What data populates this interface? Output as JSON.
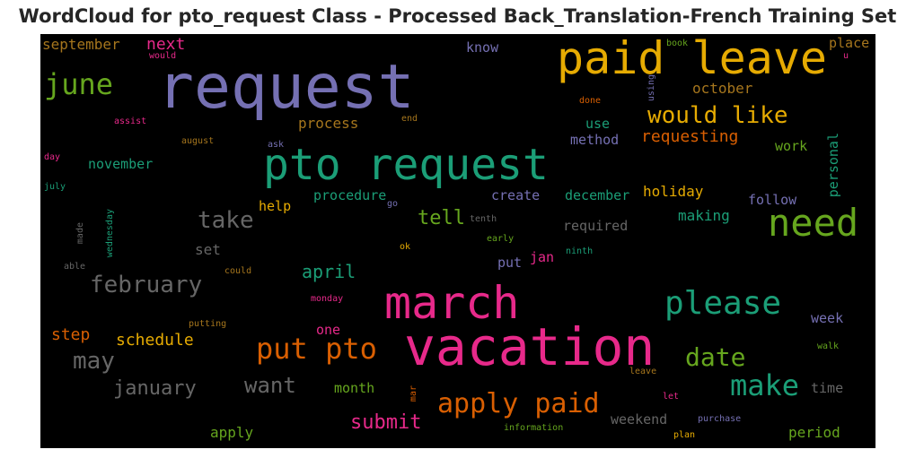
{
  "chart_data": {
    "type": "wordcloud",
    "title": "WordCloud for pto_request Class - Processed Back_Translation-French Training Set",
    "background": "#000000",
    "colormap": [
      "#1b9e77",
      "#d95f02",
      "#7570b3",
      "#e7298a",
      "#66a61e",
      "#e6ab02",
      "#a6761d",
      "#666666"
    ],
    "words": [
      {
        "text": "request",
        "color": "#7570b3"
      },
      {
        "text": "paid leave",
        "color": "#e6ab02"
      },
      {
        "text": "pto request",
        "color": "#1b9e77"
      },
      {
        "text": "vacation",
        "color": "#e7298a"
      },
      {
        "text": "march",
        "color": "#e7298a"
      },
      {
        "text": "need",
        "color": "#66a61e"
      },
      {
        "text": "please",
        "color": "#1b9e77"
      },
      {
        "text": "put pto",
        "color": "#d95f02"
      },
      {
        "text": "apply paid",
        "color": "#d95f02"
      },
      {
        "text": "make",
        "color": "#1b9e77"
      },
      {
        "text": "june",
        "color": "#66a61e"
      },
      {
        "text": "would like",
        "color": "#e6ab02"
      },
      {
        "text": "february",
        "color": "#666666"
      },
      {
        "text": "take",
        "color": "#666666"
      },
      {
        "text": "date",
        "color": "#66a61e"
      },
      {
        "text": "may",
        "color": "#666666"
      },
      {
        "text": "want",
        "color": "#666666"
      },
      {
        "text": "tell",
        "color": "#66a61e"
      },
      {
        "text": "january",
        "color": "#666666"
      },
      {
        "text": "submit",
        "color": "#e7298a"
      },
      {
        "text": "requesting",
        "color": "#d95f02"
      },
      {
        "text": "schedule",
        "color": "#e6ab02"
      },
      {
        "text": "october",
        "color": "#a6761d"
      },
      {
        "text": "april",
        "color": "#1b9e77"
      },
      {
        "text": "next",
        "color": "#e7298a"
      },
      {
        "text": "september",
        "color": "#a6761d"
      },
      {
        "text": "process",
        "color": "#a6761d"
      },
      {
        "text": "personal",
        "color": "#1b9e77"
      },
      {
        "text": "holiday",
        "color": "#e6ab02"
      },
      {
        "text": "making",
        "color": "#1b9e77"
      },
      {
        "text": "step",
        "color": "#d95f02"
      },
      {
        "text": "method",
        "color": "#7570b3"
      },
      {
        "text": "use",
        "color": "#1b9e77"
      },
      {
        "text": "work",
        "color": "#66a61e"
      },
      {
        "text": "november",
        "color": "#1b9e77"
      },
      {
        "text": "procedure",
        "color": "#1b9e77"
      },
      {
        "text": "create",
        "color": "#7570b3"
      },
      {
        "text": "december",
        "color": "#1b9e77"
      },
      {
        "text": "follow",
        "color": "#7570b3"
      },
      {
        "text": "required",
        "color": "#666666"
      },
      {
        "text": "set",
        "color": "#666666"
      },
      {
        "text": "help",
        "color": "#e6ab02"
      },
      {
        "text": "put",
        "color": "#7570b3"
      },
      {
        "text": "jan",
        "color": "#e7298a"
      },
      {
        "text": "know",
        "color": "#7570b3"
      },
      {
        "text": "place",
        "color": "#a6761d"
      },
      {
        "text": "week",
        "color": "#7570b3"
      },
      {
        "text": "time",
        "color": "#666666"
      },
      {
        "text": "month",
        "color": "#66a61e"
      },
      {
        "text": "one",
        "color": "#e7298a"
      },
      {
        "text": "weekend",
        "color": "#666666"
      },
      {
        "text": "apply",
        "color": "#66a61e"
      },
      {
        "text": "period",
        "color": "#66a61e"
      },
      {
        "text": "book",
        "color": "#66a61e"
      },
      {
        "text": "using",
        "color": "#7570b3"
      },
      {
        "text": "u",
        "color": "#e7298a"
      },
      {
        "text": "would",
        "color": "#e7298a"
      },
      {
        "text": "done",
        "color": "#d95f02"
      },
      {
        "text": "assist",
        "color": "#e7298a"
      },
      {
        "text": "end",
        "color": "#a6761d"
      },
      {
        "text": "august",
        "color": "#a6761d"
      },
      {
        "text": "ask",
        "color": "#7570b3"
      },
      {
        "text": "day",
        "color": "#e7298a"
      },
      {
        "text": "july",
        "color": "#1b9e77"
      },
      {
        "text": "wednesday",
        "color": "#1b9e77"
      },
      {
        "text": "made",
        "color": "#666666"
      },
      {
        "text": "go",
        "color": "#7570b3"
      },
      {
        "text": "tenth",
        "color": "#666666"
      },
      {
        "text": "early",
        "color": "#66a61e"
      },
      {
        "text": "ok",
        "color": "#e6ab02"
      },
      {
        "text": "ninth",
        "color": "#1b9e77"
      },
      {
        "text": "able",
        "color": "#666666"
      },
      {
        "text": "could",
        "color": "#a6761d"
      },
      {
        "text": "monday",
        "color": "#e7298a"
      },
      {
        "text": "putting",
        "color": "#a6761d"
      },
      {
        "text": "mar",
        "color": "#d95f02"
      },
      {
        "text": "leave",
        "color": "#a6761d"
      },
      {
        "text": "walk",
        "color": "#66a61e"
      },
      {
        "text": "let",
        "color": "#e7298a"
      },
      {
        "text": "purchase",
        "color": "#7570b3"
      },
      {
        "text": "information",
        "color": "#66a61e"
      },
      {
        "text": "plan",
        "color": "#e6ab02"
      }
    ]
  }
}
